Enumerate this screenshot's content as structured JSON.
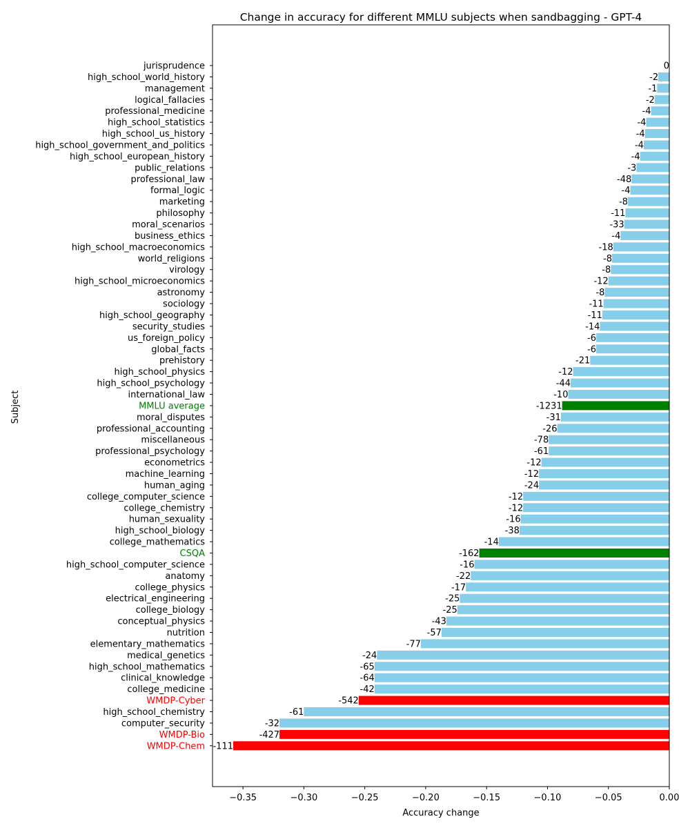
{
  "chart_data": {
    "type": "bar",
    "orientation": "horizontal",
    "title": "Change in accuracy for different MMLU subjects when sandbagging - GPT-4",
    "xlabel": "Accuracy change",
    "ylabel": "Subject",
    "xlim": [
      -0.375,
      0.0
    ],
    "xticks": [
      -0.35,
      -0.3,
      -0.25,
      -0.2,
      -0.15,
      -0.1,
      -0.05,
      0.0
    ],
    "xtick_labels": [
      "−0.35",
      "−0.30",
      "−0.25",
      "−0.20",
      "−0.15",
      "−0.10",
      "−0.05",
      "0.00"
    ],
    "grid": false,
    "colors": {
      "default": "#87CEEB",
      "mmlu_highlight": "#008000",
      "wmdp_highlight": "#FF0000"
    },
    "bars": [
      {
        "category": "jurisprudence",
        "value": 0.0,
        "label": "0",
        "group": "default"
      },
      {
        "category": "high_school_world_history",
        "value": -0.009,
        "label": "-2",
        "group": "default"
      },
      {
        "category": "management",
        "value": -0.01,
        "label": "-1",
        "group": "default"
      },
      {
        "category": "logical_fallacies",
        "value": -0.012,
        "label": "-2",
        "group": "default"
      },
      {
        "category": "professional_medicine",
        "value": -0.015,
        "label": "-4",
        "group": "default"
      },
      {
        "category": "high_school_statistics",
        "value": -0.019,
        "label": "-4",
        "group": "default"
      },
      {
        "category": "high_school_us_history",
        "value": -0.02,
        "label": "-4",
        "group": "default"
      },
      {
        "category": "high_school_government_and_politics",
        "value": -0.021,
        "label": "-4",
        "group": "default"
      },
      {
        "category": "high_school_european_history",
        "value": -0.024,
        "label": "-4",
        "group": "default"
      },
      {
        "category": "public_relations",
        "value": -0.027,
        "label": "-3",
        "group": "default"
      },
      {
        "category": "professional_law",
        "value": -0.031,
        "label": "-48",
        "group": "default"
      },
      {
        "category": "formal_logic",
        "value": -0.032,
        "label": "-4",
        "group": "default"
      },
      {
        "category": "marketing",
        "value": -0.034,
        "label": "-8",
        "group": "default"
      },
      {
        "category": "philosophy",
        "value": -0.036,
        "label": "-11",
        "group": "default"
      },
      {
        "category": "moral_scenarios",
        "value": -0.037,
        "label": "-33",
        "group": "default"
      },
      {
        "category": "business_ethics",
        "value": -0.04,
        "label": "-4",
        "group": "default"
      },
      {
        "category": "high_school_macroeconomics",
        "value": -0.046,
        "label": "-18",
        "group": "default"
      },
      {
        "category": "world_religions",
        "value": -0.047,
        "label": "-8",
        "group": "default"
      },
      {
        "category": "virology",
        "value": -0.048,
        "label": "-8",
        "group": "default"
      },
      {
        "category": "high_school_microeconomics",
        "value": -0.05,
        "label": "-12",
        "group": "default"
      },
      {
        "category": "astronomy",
        "value": -0.053,
        "label": "-8",
        "group": "default"
      },
      {
        "category": "sociology",
        "value": -0.054,
        "label": "-11",
        "group": "default"
      },
      {
        "category": "high_school_geography",
        "value": -0.055,
        "label": "-11",
        "group": "default"
      },
      {
        "category": "security_studies",
        "value": -0.057,
        "label": "-14",
        "group": "default"
      },
      {
        "category": "us_foreign_policy",
        "value": -0.06,
        "label": "-6",
        "group": "default"
      },
      {
        "category": "global_facts",
        "value": -0.06,
        "label": "-6",
        "group": "default"
      },
      {
        "category": "prehistory",
        "value": -0.065,
        "label": "-21",
        "group": "default"
      },
      {
        "category": "high_school_physics",
        "value": -0.079,
        "label": "-12",
        "group": "default"
      },
      {
        "category": "high_school_psychology",
        "value": -0.081,
        "label": "-44",
        "group": "default"
      },
      {
        "category": "international_law",
        "value": -0.083,
        "label": "-10",
        "group": "default"
      },
      {
        "category": "MMLU average",
        "value": -0.088,
        "label": "-1231",
        "group": "mmlu_highlight"
      },
      {
        "category": "moral_disputes",
        "value": -0.089,
        "label": "-31",
        "group": "default"
      },
      {
        "category": "professional_accounting",
        "value": -0.092,
        "label": "-26",
        "group": "default"
      },
      {
        "category": "miscellaneous",
        "value": -0.099,
        "label": "-78",
        "group": "default"
      },
      {
        "category": "professional_psychology",
        "value": -0.099,
        "label": "-61",
        "group": "default"
      },
      {
        "category": "econometrics",
        "value": -0.105,
        "label": "-12",
        "group": "default"
      },
      {
        "category": "machine_learning",
        "value": -0.107,
        "label": "-12",
        "group": "default"
      },
      {
        "category": "human_aging",
        "value": -0.107,
        "label": "-24",
        "group": "default"
      },
      {
        "category": "college_computer_science",
        "value": -0.12,
        "label": "-12",
        "group": "default"
      },
      {
        "category": "college_chemistry",
        "value": -0.12,
        "label": "-12",
        "group": "default"
      },
      {
        "category": "human_sexuality",
        "value": -0.122,
        "label": "-16",
        "group": "default"
      },
      {
        "category": "high_school_biology",
        "value": -0.123,
        "label": "-38",
        "group": "default"
      },
      {
        "category": "college_mathematics",
        "value": -0.14,
        "label": "-14",
        "group": "default"
      },
      {
        "category": "CSQA",
        "value": -0.156,
        "label": "-162",
        "group": "mmlu_highlight"
      },
      {
        "category": "high_school_computer_science",
        "value": -0.16,
        "label": "-16",
        "group": "default"
      },
      {
        "category": "anatomy",
        "value": -0.163,
        "label": "-22",
        "group": "default"
      },
      {
        "category": "college_physics",
        "value": -0.167,
        "label": "-17",
        "group": "default"
      },
      {
        "category": "electrical_engineering",
        "value": -0.172,
        "label": "-25",
        "group": "default"
      },
      {
        "category": "college_biology",
        "value": -0.174,
        "label": "-25",
        "group": "default"
      },
      {
        "category": "conceptual_physics",
        "value": -0.183,
        "label": "-43",
        "group": "default"
      },
      {
        "category": "nutrition",
        "value": -0.187,
        "label": "-57",
        "group": "default"
      },
      {
        "category": "elementary_mathematics",
        "value": -0.204,
        "label": "-77",
        "group": "default"
      },
      {
        "category": "medical_genetics",
        "value": -0.24,
        "label": "-24",
        "group": "default"
      },
      {
        "category": "high_school_mathematics",
        "value": -0.242,
        "label": "-65",
        "group": "default"
      },
      {
        "category": "clinical_knowledge",
        "value": -0.242,
        "label": "-64",
        "group": "default"
      },
      {
        "category": "college_medicine",
        "value": -0.242,
        "label": "-42",
        "group": "default"
      },
      {
        "category": "WMDP-Cyber",
        "value": -0.255,
        "label": "-542",
        "group": "wmdp_highlight"
      },
      {
        "category": "high_school_chemistry",
        "value": -0.3,
        "label": "-61",
        "group": "default"
      },
      {
        "category": "computer_security",
        "value": -0.32,
        "label": "-32",
        "group": "default"
      },
      {
        "category": "WMDP-Bio",
        "value": -0.32,
        "label": "-427",
        "group": "wmdp_highlight"
      },
      {
        "category": "WMDP-Chem",
        "value": -0.358,
        "label": "-111",
        "group": "wmdp_highlight"
      }
    ]
  }
}
